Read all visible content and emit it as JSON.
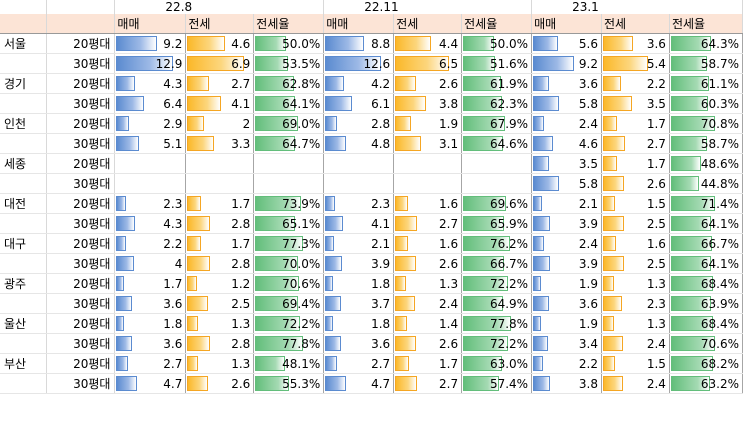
{
  "periods": [
    "22.8",
    "22.11",
    "23.1"
  ],
  "columns": [
    "매매",
    "전세",
    "전세율"
  ],
  "colors": {
    "sale_bar": "#5b8bd0",
    "jeonse_bar": "#fbb829",
    "ratio_bar": "#63be7b",
    "header_bg": "#fce4d6"
  },
  "scale": {
    "sale_max": 14,
    "jeonse_max": 7.5
  },
  "rows": [
    {
      "region": "서울",
      "size": "20평대",
      "d": [
        [
          "9.2",
          "4.6",
          "50.0%"
        ],
        [
          "8.8",
          "4.4",
          "50.0%"
        ],
        [
          "5.6",
          "3.6",
          "64.3%"
        ]
      ]
    },
    {
      "region": "",
      "size": "30평대",
      "d": [
        [
          "12.9",
          "6.9",
          "53.5%"
        ],
        [
          "12.6",
          "6.5",
          "51.6%"
        ],
        [
          "9.2",
          "5.4",
          "58.7%"
        ]
      ]
    },
    {
      "region": "경기",
      "size": "20평대",
      "d": [
        [
          "4.3",
          "2.7",
          "62.8%"
        ],
        [
          "4.2",
          "2.6",
          "61.9%"
        ],
        [
          "3.6",
          "2.2",
          "61.1%"
        ]
      ]
    },
    {
      "region": "",
      "size": "30평대",
      "d": [
        [
          "6.4",
          "4.1",
          "64.1%"
        ],
        [
          "6.1",
          "3.8",
          "62.3%"
        ],
        [
          "5.8",
          "3.5",
          "60.3%"
        ]
      ]
    },
    {
      "region": "인천",
      "size": "20평대",
      "d": [
        [
          "2.9",
          "2",
          "69.0%"
        ],
        [
          "2.8",
          "1.9",
          "67.9%"
        ],
        [
          "2.4",
          "1.7",
          "70.8%"
        ]
      ]
    },
    {
      "region": "",
      "size": "30평대",
      "d": [
        [
          "5.1",
          "3.3",
          "64.7%"
        ],
        [
          "4.8",
          "3.1",
          "64.6%"
        ],
        [
          "4.6",
          "2.7",
          "58.7%"
        ]
      ]
    },
    {
      "region": "세종",
      "size": "20평대",
      "d": [
        [
          "",
          "",
          ""
        ],
        [
          "",
          "",
          ""
        ],
        [
          "3.5",
          "1.7",
          "48.6%"
        ]
      ]
    },
    {
      "region": "",
      "size": "30평대",
      "d": [
        [
          "",
          "",
          ""
        ],
        [
          "",
          "",
          ""
        ],
        [
          "5.8",
          "2.6",
          "44.8%"
        ]
      ]
    },
    {
      "region": "대전",
      "size": "20평대",
      "d": [
        [
          "2.3",
          "1.7",
          "73.9%"
        ],
        [
          "2.3",
          "1.6",
          "69.6%"
        ],
        [
          "2.1",
          "1.5",
          "71.4%"
        ]
      ]
    },
    {
      "region": "",
      "size": "30평대",
      "d": [
        [
          "4.3",
          "2.8",
          "65.1%"
        ],
        [
          "4.1",
          "2.7",
          "65.9%"
        ],
        [
          "3.9",
          "2.5",
          "64.1%"
        ]
      ]
    },
    {
      "region": "대구",
      "size": "20평대",
      "d": [
        [
          "2.2",
          "1.7",
          "77.3%"
        ],
        [
          "2.1",
          "1.6",
          "76.2%"
        ],
        [
          "2.4",
          "1.6",
          "66.7%"
        ]
      ]
    },
    {
      "region": "",
      "size": "30평대",
      "d": [
        [
          "4",
          "2.8",
          "70.0%"
        ],
        [
          "3.9",
          "2.6",
          "66.7%"
        ],
        [
          "3.9",
          "2.5",
          "64.1%"
        ]
      ]
    },
    {
      "region": "광주",
      "size": "20평대",
      "d": [
        [
          "1.7",
          "1.2",
          "70.6%"
        ],
        [
          "1.8",
          "1.3",
          "72.2%"
        ],
        [
          "1.9",
          "1.3",
          "68.4%"
        ]
      ]
    },
    {
      "region": "",
      "size": "30평대",
      "d": [
        [
          "3.6",
          "2.5",
          "69.4%"
        ],
        [
          "3.7",
          "2.4",
          "64.9%"
        ],
        [
          "3.6",
          "2.3",
          "63.9%"
        ]
      ]
    },
    {
      "region": "울산",
      "size": "20평대",
      "d": [
        [
          "1.8",
          "1.3",
          "72.2%"
        ],
        [
          "1.8",
          "1.4",
          "77.8%"
        ],
        [
          "1.9",
          "1.3",
          "68.4%"
        ]
      ]
    },
    {
      "region": "",
      "size": "30평대",
      "d": [
        [
          "3.6",
          "2.8",
          "77.8%"
        ],
        [
          "3.6",
          "2.6",
          "72.2%"
        ],
        [
          "3.4",
          "2.4",
          "70.6%"
        ]
      ]
    },
    {
      "region": "부산",
      "size": "20평대",
      "d": [
        [
          "2.7",
          "1.3",
          "48.1%"
        ],
        [
          "2.7",
          "1.7",
          "63.0%"
        ],
        [
          "2.2",
          "1.5",
          "68.2%"
        ]
      ]
    },
    {
      "region": "",
      "size": "30평대",
      "d": [
        [
          "4.7",
          "2.6",
          "55.3%"
        ],
        [
          "4.7",
          "2.7",
          "57.4%"
        ],
        [
          "3.8",
          "2.4",
          "63.2%"
        ]
      ]
    }
  ]
}
